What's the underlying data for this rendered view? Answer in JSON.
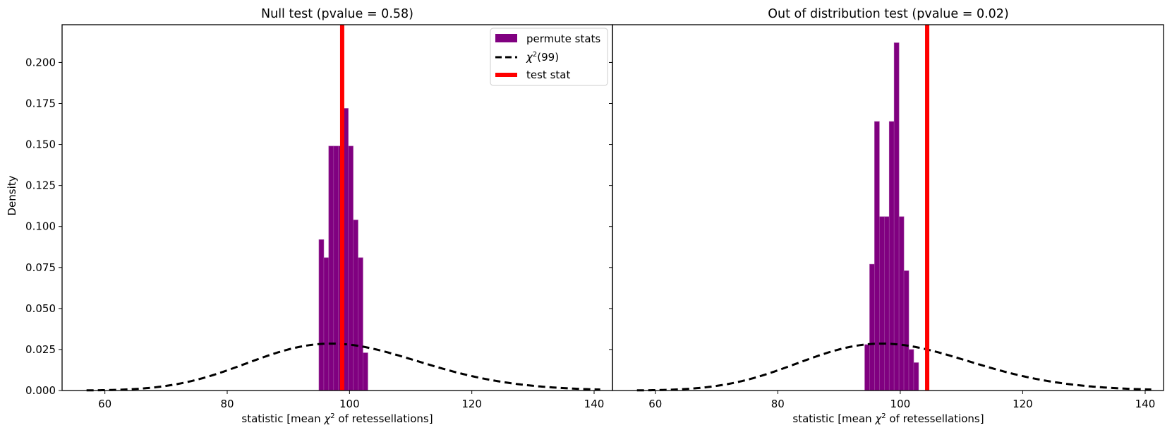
{
  "figure": {
    "ylabel": "Density",
    "legend": {
      "placement": "top-right",
      "entries": [
        {
          "label": "permute stats",
          "kind": "patch",
          "color": "#800080"
        },
        {
          "label": "χ²(99)",
          "label_base": "χ",
          "label_sup": "2",
          "label_tail": "(99)",
          "kind": "dashed-line",
          "color": "#000000"
        },
        {
          "label": "test stat",
          "kind": "line",
          "color": "#ff0000"
        }
      ]
    }
  },
  "chart_data": [
    {
      "type": "bar",
      "title": "Null test (pvalue = 0.58)",
      "xlabel": "statistic [mean χ² of retessellations]",
      "xlabel_parts": {
        "before": "statistic [mean ",
        "chi": "χ",
        "sup": "2",
        "after": " of retessellations]"
      },
      "ylabel": "Density",
      "xlim": [
        53,
        143
      ],
      "ylim": [
        0,
        0.223
      ],
      "xticks": [
        60,
        80,
        100,
        120,
        140
      ],
      "yticks": [
        0.0,
        0.025,
        0.05,
        0.075,
        0.1,
        0.125,
        0.15,
        0.175,
        0.2
      ],
      "ytick_labels": [
        "0.000",
        "0.025",
        "0.050",
        "0.075",
        "0.100",
        "0.125",
        "0.150",
        "0.175",
        "0.200"
      ],
      "grid": false,
      "histogram": {
        "name": "permute stats",
        "color": "#800080",
        "bin_edges": [
          95.0,
          95.8,
          96.6,
          97.4,
          98.2,
          99.0,
          99.8,
          100.6,
          101.4,
          102.2,
          103.0
        ],
        "density": [
          0.092,
          0.081,
          0.149,
          0.149,
          0.149,
          0.172,
          0.149,
          0.104,
          0.081,
          0.023
        ]
      },
      "chi2_curve": {
        "name": "χ²(99)",
        "df": 99,
        "scale": 1,
        "x_range": [
          57,
          141
        ],
        "color": "#000000",
        "style": "dashed"
      },
      "test_stat": {
        "name": "test stat",
        "value": 98.8,
        "color": "#ff0000"
      }
    },
    {
      "type": "bar",
      "title": "Out of distribution test (pvalue = 0.02)",
      "xlabel": "statistic [mean χ² of retessellations]",
      "xlabel_parts": {
        "before": "statistic [mean ",
        "chi": "χ",
        "sup": "2",
        "after": " of retessellations]"
      },
      "xlim": [
        53,
        143
      ],
      "ylim": [
        0,
        0.223
      ],
      "xticks": [
        60,
        80,
        100,
        120,
        140
      ],
      "grid": false,
      "histogram": {
        "name": "permute stats",
        "color": "#800080",
        "bin_edges": [
          94.2,
          95.0,
          95.8,
          96.6,
          97.4,
          98.2,
          99.0,
          99.8,
          100.6,
          101.4,
          102.2,
          103.0
        ],
        "density": [
          0.028,
          0.077,
          0.164,
          0.106,
          0.106,
          0.164,
          0.212,
          0.106,
          0.073,
          0.025,
          0.017
        ]
      },
      "chi2_curve": {
        "name": "χ²(99)",
        "df": 99,
        "scale": 1,
        "x_range": [
          57,
          141
        ],
        "color": "#000000",
        "style": "dashed"
      },
      "test_stat": {
        "name": "test stat",
        "value": 104.4,
        "color": "#ff0000"
      }
    }
  ]
}
